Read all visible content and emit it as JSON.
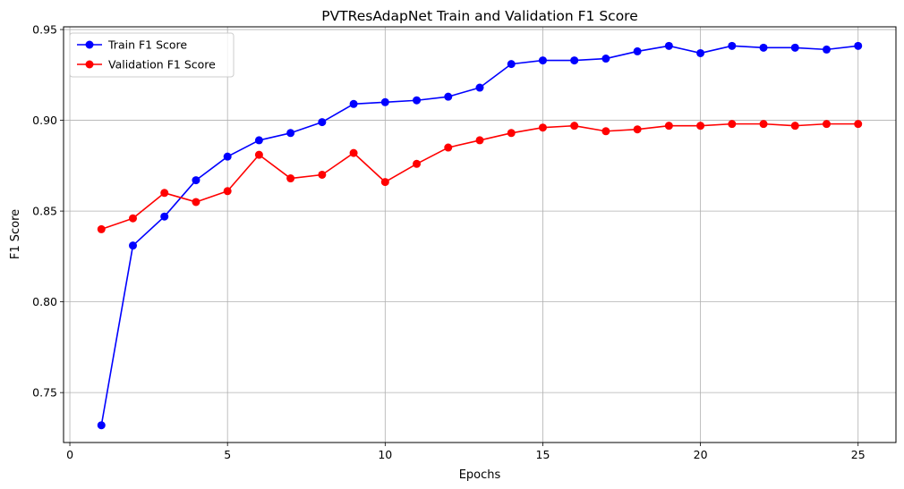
{
  "chart_data": {
    "type": "line",
    "title": "PVTResAdapNet Train and Validation F1 Score",
    "xlabel": "Epochs",
    "ylabel": "F1 Score",
    "xlim": [
      -0.2,
      26.2
    ],
    "ylim": [
      0.7225,
      0.9515
    ],
    "xticks": [
      0,
      5,
      10,
      15,
      20,
      25
    ],
    "yticks": [
      0.75,
      0.8,
      0.85,
      0.9,
      0.95
    ],
    "ytick_labels": [
      "0.75",
      "0.80",
      "0.85",
      "0.90",
      "0.95"
    ],
    "grid": true,
    "legend_position": "upper left",
    "x": [
      1,
      2,
      3,
      4,
      5,
      6,
      7,
      8,
      9,
      10,
      11,
      12,
      13,
      14,
      15,
      16,
      17,
      18,
      19,
      20,
      21,
      22,
      23,
      24,
      25
    ],
    "series": [
      {
        "name": "Train F1 Score",
        "color": "#0000ff",
        "values": [
          0.732,
          0.831,
          0.847,
          0.867,
          0.88,
          0.889,
          0.893,
          0.899,
          0.909,
          0.91,
          0.911,
          0.913,
          0.918,
          0.931,
          0.933,
          0.933,
          0.934,
          0.938,
          0.941,
          0.937,
          0.941,
          0.94,
          0.94,
          0.939,
          0.941
        ]
      },
      {
        "name": "Validation F1 Score",
        "color": "#ff0000",
        "values": [
          0.84,
          0.846,
          0.86,
          0.855,
          0.861,
          0.881,
          0.868,
          0.87,
          0.882,
          0.866,
          0.876,
          0.885,
          0.889,
          0.893,
          0.896,
          0.897,
          0.894,
          0.895,
          0.897,
          0.897,
          0.898,
          0.898,
          0.897,
          0.898,
          0.898
        ]
      }
    ]
  }
}
